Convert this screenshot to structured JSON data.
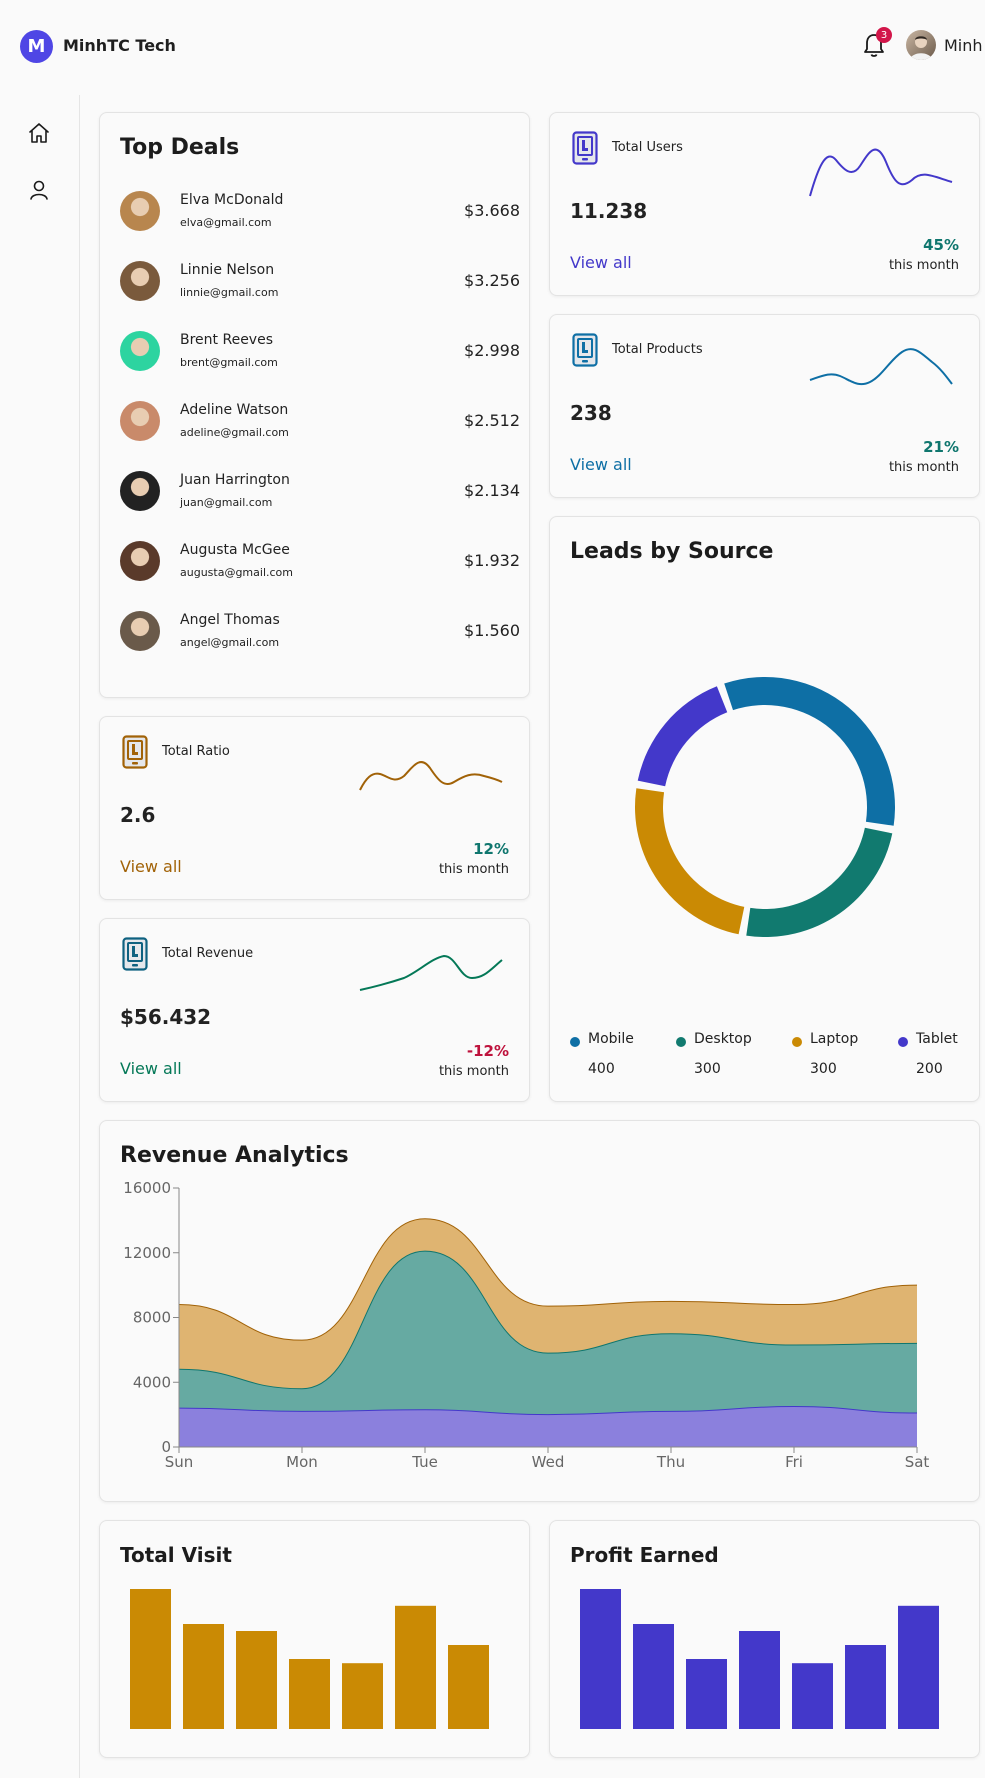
{
  "app": {
    "logo_letter": "M",
    "title": "MinhTC Tech"
  },
  "header": {
    "notification_count": "3",
    "user_name": "Minh"
  },
  "sidebar": {
    "items": [
      {
        "icon": "home-icon"
      },
      {
        "icon": "user-icon"
      }
    ]
  },
  "top_deals": {
    "title": "Top Deals",
    "rows": [
      {
        "name": "Elva McDonald",
        "email": "elva@gmail.com",
        "amount": "$3.668"
      },
      {
        "name": "Linnie Nelson",
        "email": "linnie@gmail.com",
        "amount": "$3.256"
      },
      {
        "name": "Brent Reeves",
        "email": "brent@gmail.com",
        "amount": "$2.998"
      },
      {
        "name": "Adeline Watson",
        "email": "adeline@gmail.com",
        "amount": "$2.512"
      },
      {
        "name": "Juan Harrington",
        "email": "juan@gmail.com",
        "amount": "$2.134"
      },
      {
        "name": "Augusta McGee",
        "email": "augusta@gmail.com",
        "amount": "$1.932"
      },
      {
        "name": "Angel Thomas",
        "email": "angel@gmail.com",
        "amount": "$1.560"
      }
    ]
  },
  "stats": {
    "users": {
      "label": "Total Users",
      "value": "11.238",
      "link": "View all",
      "percent": "45%",
      "period": "this month",
      "color": "#4338ca",
      "pct_color": "#0f766e"
    },
    "products": {
      "label": "Total Products",
      "value": "238",
      "link": "View all",
      "percent": "21%",
      "period": "this month",
      "color": "#0e6fa5",
      "pct_color": "#0f766e"
    },
    "ratio": {
      "label": "Total Ratio",
      "value": "2.6",
      "link": "View all",
      "percent": "12%",
      "period": "this month",
      "color": "#a16207",
      "pct_color": "#0f766e"
    },
    "revenue": {
      "label": "Total Revenue",
      "value": "$56.432",
      "link": "View all",
      "percent": "-12%",
      "period": "this month",
      "color": "#047857",
      "pct_color": "#be123c"
    }
  },
  "leads": {
    "title": "Leads by Source",
    "sources": [
      {
        "label": "Mobile",
        "value": "400",
        "color": "#0e6fa5"
      },
      {
        "label": "Desktop",
        "value": "300",
        "color": "#117a6f"
      },
      {
        "label": "Laptop",
        "value": "300",
        "color": "#ca8a04"
      },
      {
        "label": "Tablet",
        "value": "200",
        "color": "#4338ca"
      }
    ]
  },
  "revenue_analytics": {
    "title": "Revenue Analytics"
  },
  "total_visit": {
    "title": "Total Visit",
    "color": "#ca8a04"
  },
  "profit_earned": {
    "title": "Profit Earned",
    "color": "#4338ca"
  },
  "chart_data": [
    {
      "type": "pie",
      "title": "Leads by Source",
      "categories": [
        "Mobile",
        "Desktop",
        "Laptop",
        "Tablet"
      ],
      "values": [
        400,
        300,
        300,
        200
      ],
      "legend": "bottom"
    },
    {
      "type": "area",
      "title": "Revenue Analytics",
      "categories": [
        "Sun",
        "Mon",
        "Tue",
        "Wed",
        "Thu",
        "Fri",
        "Sat"
      ],
      "ylim": [
        0,
        16000
      ],
      "yticks": [
        "0",
        "4000",
        "8000",
        "12000",
        "16000"
      ],
      "stacked": true,
      "series": [
        {
          "values": [
            2400,
            2200,
            2300,
            2000,
            2200,
            2500,
            2100
          ],
          "color": "#8b80dd"
        },
        {
          "values": [
            2400,
            1400,
            9800,
            3800,
            4800,
            3800,
            4300
          ],
          "color": "#66aaa2"
        },
        {
          "values": [
            4000,
            3000,
            2000,
            2900,
            2000,
            2500,
            3600
          ],
          "color": "#dfb471"
        }
      ]
    },
    {
      "type": "bar",
      "title": "Total Visit",
      "values": [
        100,
        75,
        70,
        50,
        47,
        88,
        60
      ],
      "ylim": [
        0,
        100
      ]
    },
    {
      "type": "bar",
      "title": "Profit Earned",
      "values": [
        100,
        75,
        50,
        70,
        47,
        60,
        88
      ],
      "ylim": [
        0,
        100
      ]
    }
  ]
}
